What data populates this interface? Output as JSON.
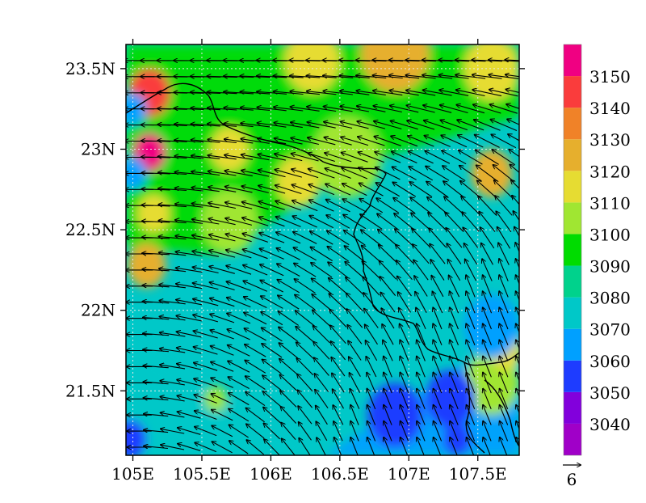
{
  "chart_data": {
    "type": "heatmap",
    "title": "",
    "xlabel": "",
    "ylabel": "",
    "xlim": [
      104.95,
      107.8
    ],
    "ylim": [
      21.1,
      23.65
    ],
    "x_ticks": [
      {
        "value": 105.0,
        "label": "105E"
      },
      {
        "value": 105.5,
        "label": "105.5E"
      },
      {
        "value": 106.0,
        "label": "106E"
      },
      {
        "value": 106.5,
        "label": "106.5E"
      },
      {
        "value": 107.0,
        "label": "107E"
      },
      {
        "value": 107.5,
        "label": "107.5E"
      }
    ],
    "y_ticks": [
      {
        "value": 21.5,
        "label": "21.5N"
      },
      {
        "value": 22.0,
        "label": "22N"
      },
      {
        "value": 22.5,
        "label": "22.5N"
      },
      {
        "value": 23.0,
        "label": "23N"
      },
      {
        "value": 23.5,
        "label": "23.5N"
      }
    ],
    "grid": true,
    "colorbar": {
      "placement": "right",
      "levels": [
        3040,
        3050,
        3060,
        3070,
        3080,
        3090,
        3100,
        3110,
        3120,
        3130,
        3140,
        3150
      ],
      "colors": [
        "#a000c8",
        "#8200dc",
        "#1e3cff",
        "#00a0ff",
        "#00c8c8",
        "#00d28c",
        "#00dc00",
        "#a0e632",
        "#e6dc32",
        "#e6af2d",
        "#f08228",
        "#fa3c3c",
        "#f00082"
      ]
    },
    "field_bands": [
      {
        "from": [
          104.95,
          21.8
        ],
        "to": [
          106.4,
          21.1
        ],
        "value": 3075
      },
      {
        "from": [
          106.4,
          21.1
        ],
        "to": [
          107.8,
          21.9
        ],
        "value": 3065
      },
      {
        "from": [
          105.0,
          23.65
        ],
        "to": [
          107.8,
          23.65
        ],
        "value": 3095
      }
    ],
    "field_features": [
      {
        "x": 105.12,
        "y": 23.35,
        "radius": 0.15,
        "value": 3140
      },
      {
        "x": 105.12,
        "y": 22.98,
        "radius": 0.12,
        "value": 3150
      },
      {
        "x": 105.1,
        "y": 22.28,
        "radius": 0.14,
        "value": 3120
      },
      {
        "x": 105.15,
        "y": 22.6,
        "radius": 0.12,
        "value": 3110
      },
      {
        "x": 105.0,
        "y": 22.85,
        "radius": 0.1,
        "value": 3060
      },
      {
        "x": 105.0,
        "y": 23.25,
        "radius": 0.1,
        "value": 3060
      },
      {
        "x": 104.98,
        "y": 21.2,
        "radius": 0.12,
        "value": 3055
      },
      {
        "x": 106.9,
        "y": 23.6,
        "radius": 0.25,
        "value": 3120
      },
      {
        "x": 106.3,
        "y": 23.55,
        "radius": 0.2,
        "value": 3110
      },
      {
        "x": 107.6,
        "y": 23.5,
        "radius": 0.2,
        "value": 3110
      },
      {
        "x": 107.6,
        "y": 22.85,
        "radius": 0.15,
        "value": 3120
      },
      {
        "x": 105.7,
        "y": 23.0,
        "radius": 0.14,
        "value": 3110
      },
      {
        "x": 106.2,
        "y": 22.8,
        "radius": 0.16,
        "value": 3110
      },
      {
        "x": 105.7,
        "y": 22.55,
        "radius": 0.2,
        "value": 3100
      },
      {
        "x": 106.55,
        "y": 22.95,
        "radius": 0.25,
        "value": 3100
      },
      {
        "x": 107.6,
        "y": 21.55,
        "radius": 0.2,
        "value": 3100
      },
      {
        "x": 107.7,
        "y": 21.75,
        "radius": 0.12,
        "value": 3110
      },
      {
        "x": 106.9,
        "y": 21.35,
        "radius": 0.2,
        "value": 3055
      },
      {
        "x": 107.3,
        "y": 21.45,
        "radius": 0.18,
        "value": 3055
      },
      {
        "x": 107.6,
        "y": 21.9,
        "radius": 0.2,
        "value": 3060
      },
      {
        "x": 105.6,
        "y": 21.45,
        "radius": 0.08,
        "value": 3100
      },
      {
        "x": 107.35,
        "y": 21.2,
        "radius": 0.1,
        "value": 3055
      }
    ],
    "wind": {
      "description": "Vectors point westward in north, turning to west-northwest/north-northwest toward the southeast",
      "rows": [
        21.15,
        21.25,
        21.35,
        21.45,
        21.55,
        21.65,
        21.75,
        21.85,
        21.95,
        22.05,
        22.15,
        22.25,
        22.35,
        22.45,
        22.55,
        22.65,
        22.75,
        22.85,
        22.95,
        23.05,
        23.15,
        23.25,
        23.35,
        23.45,
        23.55
      ],
      "cols": [
        105.0,
        105.12,
        105.24,
        105.36,
        105.48,
        105.6,
        105.72,
        105.84,
        105.96,
        106.08,
        106.2,
        106.32,
        106.44,
        106.56,
        106.68,
        106.8,
        106.92,
        107.04,
        107.16,
        107.28,
        107.4,
        107.52,
        107.64,
        107.76
      ],
      "reference_label": "6"
    }
  }
}
